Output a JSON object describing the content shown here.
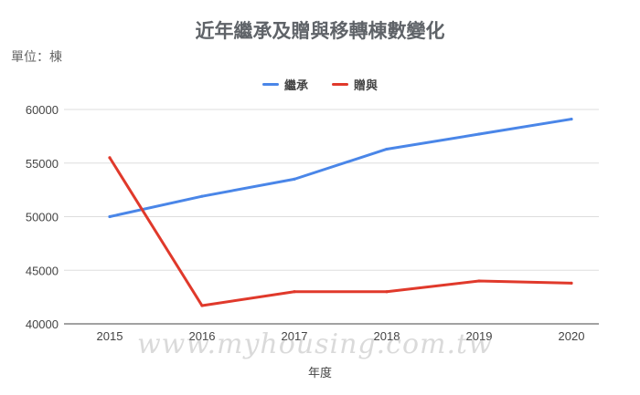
{
  "chart_data": {
    "type": "line",
    "title": "近年繼承及贈與移轉棟數變化",
    "unit_label": "單位：棟",
    "xlabel": "年度",
    "ylabel": "",
    "categories": [
      "2015",
      "2016",
      "2017",
      "2018",
      "2019",
      "2020"
    ],
    "ylim": [
      40000,
      60000
    ],
    "yticks": [
      40000,
      45000,
      50000,
      55000,
      60000
    ],
    "grid": true,
    "legend_position": "top",
    "series": [
      {
        "name": "繼承",
        "color": "#4a86e8",
        "values": [
          50000,
          51900,
          53500,
          56300,
          57700,
          59100
        ]
      },
      {
        "name": "贈與",
        "color": "#e0392b",
        "values": [
          55500,
          41700,
          43000,
          43000,
          44000,
          43800
        ]
      }
    ]
  },
  "watermark": "www.myhousing.com.tw"
}
